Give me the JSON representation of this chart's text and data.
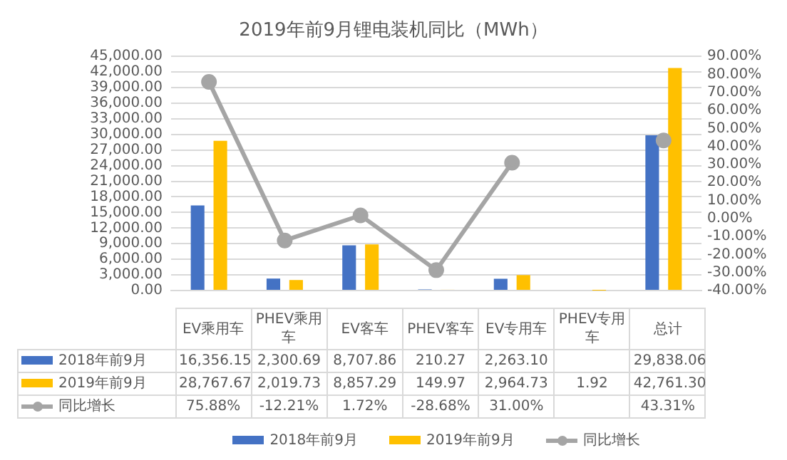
{
  "chart_data": {
    "type": "bar",
    "title": "2019年前9月锂电装机同比（MWh）",
    "categories": [
      "EV乘用车",
      "PHEV乘用车",
      "EV客车",
      "PHEV客车",
      "EV专用车",
      "PHEV专用车",
      "总计"
    ],
    "series": [
      {
        "name": "2018年前9月",
        "color": "#4472c4",
        "values": [
          16356.15,
          2300.69,
          8707.86,
          210.27,
          2263.1,
          null,
          29838.06
        ],
        "value_labels": [
          "16,356.15",
          "2,300.69",
          "8,707.86",
          "210.27",
          "2,263.10",
          null,
          "29,838.06"
        ]
      },
      {
        "name": "2019年前9月",
        "color": "#ffc000",
        "values": [
          28767.67,
          2019.73,
          8857.29,
          149.97,
          2964.73,
          1.92,
          42761.3
        ],
        "value_labels": [
          "28,767.67",
          "2,019.73",
          "8,857.29",
          "149.97",
          "2,964.73",
          "1.92",
          "42,761.30"
        ]
      },
      {
        "name": "同比增长",
        "type": "line",
        "axis": "y2",
        "color": "#a5a5a5",
        "marker": "circle",
        "values": [
          75.88,
          -12.21,
          1.72,
          -28.68,
          31.0,
          null,
          43.31
        ],
        "value_labels": [
          "75.88%",
          "-12.21%",
          "1.72%",
          "-28.68%",
          "31.00%",
          null,
          "43.31%"
        ]
      }
    ],
    "ylim": [
      0,
      45000
    ],
    "yticks": [
      {
        "value": 0,
        "label": "0.00"
      },
      {
        "value": 3000,
        "label": "3,000.00"
      },
      {
        "value": 6000,
        "label": "6,000.00"
      },
      {
        "value": 9000,
        "label": "9,000.00"
      },
      {
        "value": 12000,
        "label": "12,000.00"
      },
      {
        "value": 15000,
        "label": "15,000.00"
      },
      {
        "value": 18000,
        "label": "18,000.00"
      },
      {
        "value": 21000,
        "label": "21,000.00"
      },
      {
        "value": 24000,
        "label": "24,000.00"
      },
      {
        "value": 27000,
        "label": "27,000.00"
      },
      {
        "value": 30000,
        "label": "30,000.00"
      },
      {
        "value": 33000,
        "label": "33,000.00"
      },
      {
        "value": 36000,
        "label": "36,000.00"
      },
      {
        "value": 39000,
        "label": "39,000.00"
      },
      {
        "value": 42000,
        "label": "42,000.00"
      },
      {
        "value": 45000,
        "label": "45,000.00"
      }
    ],
    "y2lim": [
      -40,
      90
    ],
    "y2ticks": [
      {
        "value": -40,
        "label": "-40.00%"
      },
      {
        "value": -30,
        "label": "-30.00%"
      },
      {
        "value": -20,
        "label": "-20.00%"
      },
      {
        "value": -10,
        "label": "-10.00%"
      },
      {
        "value": 0,
        "label": "0.00%"
      },
      {
        "value": 10,
        "label": "10.00%"
      },
      {
        "value": 20,
        "label": "20.00%"
      },
      {
        "value": 30,
        "label": "30.00%"
      },
      {
        "value": 40,
        "label": "40.00%"
      },
      {
        "value": 50,
        "label": "50.00%"
      },
      {
        "value": 60,
        "label": "60.00%"
      },
      {
        "value": 70,
        "label": "70.00%"
      },
      {
        "value": 80,
        "label": "80.00%"
      },
      {
        "value": 90,
        "label": "90.00%"
      }
    ],
    "grid": "y",
    "legend": "bottom"
  }
}
